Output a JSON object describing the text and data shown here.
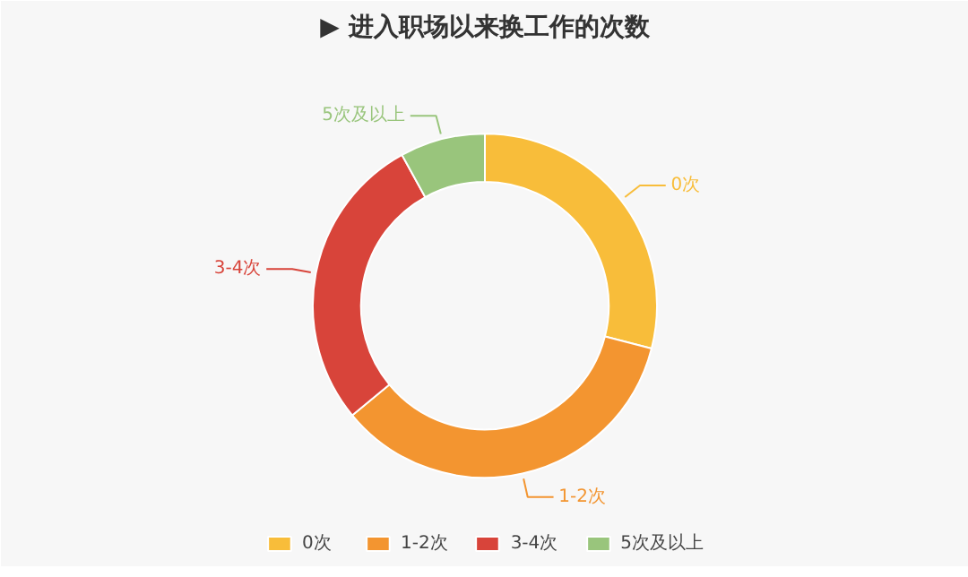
{
  "chart_data": {
    "type": "donut",
    "title": "▶ 进入职场以来换工作的次数",
    "categories": [
      "0次",
      "1-2次",
      "3-4次",
      "5次及以上"
    ],
    "values": [
      29,
      35,
      28,
      8
    ],
    "colors": [
      "#f8bd3a",
      "#f39530",
      "#d8443a",
      "#99c57c"
    ],
    "legend": "bottom"
  }
}
